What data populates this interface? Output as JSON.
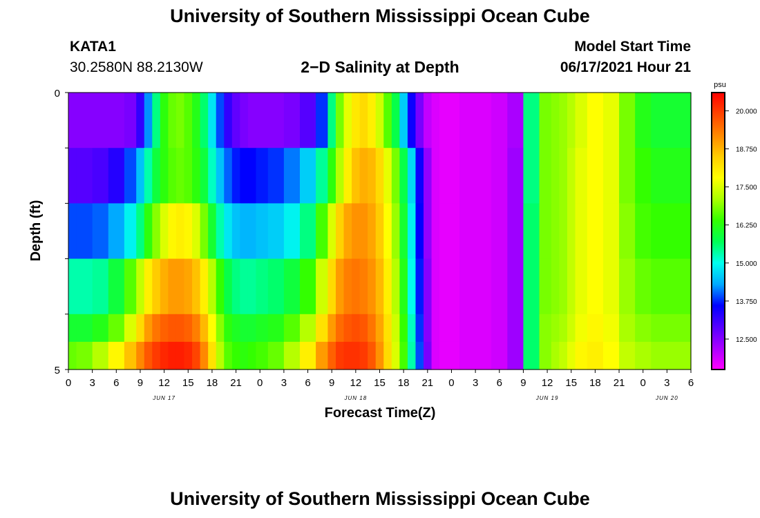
{
  "header": {
    "title": "University of Southern Mississippi Ocean Cube",
    "station_name": "KATA1",
    "station_coords": "30.2580N  88.2130W",
    "plot_title": "2−D Salinity at Depth",
    "start_label": "Model Start Time",
    "start_value": "06/17/2021 Hour 21"
  },
  "footer": {
    "title": "University of Southern Mississippi Ocean Cube"
  },
  "chart_data": {
    "type": "heatmap",
    "title": "2−D Salinity at Depth",
    "xlabel": "Forecast Time(Z)",
    "ylabel": "Depth (ft)",
    "x_tick_labels": [
      "0",
      "3",
      "6",
      "9",
      "12",
      "15",
      "18",
      "21",
      "0",
      "3",
      "6",
      "9",
      "12",
      "15",
      "18",
      "21",
      "0",
      "3",
      "6",
      "9",
      "12",
      "15",
      "18",
      "21",
      "0",
      "3",
      "6"
    ],
    "date_labels": [
      {
        "label": "JUN 17",
        "hour_index": 12
      },
      {
        "label": "JUN 18",
        "hour_index": 36
      },
      {
        "label": "JUN 19",
        "hour_index": 60
      },
      {
        "label": "JUN 20",
        "hour_index": 75
      }
    ],
    "x_range_hours": [
      0,
      78
    ],
    "y_tick_labels": [
      "0",
      "5"
    ],
    "ylim": [
      0,
      5
    ],
    "colorbar": {
      "unit": "psu",
      "tick_labels": [
        "20.000",
        "18.750",
        "17.500",
        "16.250",
        "15.000",
        "13.750",
        "12.500"
      ],
      "range": [
        11.5,
        20.6
      ],
      "colors": [
        "#ff00ff",
        "#aa00ff",
        "#5500ff",
        "#0000ff",
        "#00aaff",
        "#00ffee",
        "#00ff55",
        "#33ff00",
        "#aaff00",
        "#ffff00",
        "#ffcc00",
        "#ff8800",
        "#ff4400",
        "#ff0000"
      ]
    },
    "depth_rows": [
      0,
      1,
      2,
      3,
      4,
      4.5
    ],
    "forecast_hours": [
      0,
      2,
      4,
      6,
      8,
      9,
      10,
      11,
      12,
      13,
      14,
      15,
      16,
      17,
      18,
      19,
      20,
      21,
      22,
      23,
      24,
      26,
      28,
      30,
      32,
      33,
      34,
      35,
      36,
      37,
      38,
      39,
      40,
      41,
      42,
      43,
      44,
      45,
      46,
      47,
      48,
      50,
      52,
      54,
      56,
      58,
      60,
      61,
      62,
      63,
      64,
      66,
      68,
      70,
      72,
      74,
      76,
      78
    ],
    "salinity": [
      [
        12.5,
        12.5,
        12.5,
        12.5,
        12.6,
        13.2,
        14.2,
        15.5,
        16.3,
        16.7,
        16.8,
        16.6,
        16.2,
        15.6,
        14.8,
        13.9,
        13.2,
        12.8,
        12.6,
        12.5,
        12.5,
        12.5,
        12.6,
        12.9,
        13.8,
        15.5,
        16.8,
        17.6,
        18.1,
        18.3,
        18.0,
        17.4,
        16.6,
        15.8,
        14.6,
        13.5,
        12.6,
        12.0,
        11.8,
        11.7,
        11.7,
        11.8,
        11.8,
        11.9,
        12.2,
        15.5,
        16.8,
        16.9,
        17.0,
        17.2,
        17.5,
        17.8,
        17.6,
        16.8,
        16.2,
        16.0,
        16.0,
        16.0
      ],
      [
        12.9,
        12.9,
        13.0,
        13.3,
        13.9,
        14.5,
        15.3,
        15.9,
        16.3,
        16.6,
        16.7,
        16.6,
        16.3,
        15.9,
        15.2,
        14.5,
        14.0,
        13.7,
        13.6,
        13.6,
        13.7,
        13.8,
        14.1,
        14.6,
        15.4,
        16.3,
        17.2,
        18.0,
        18.6,
        18.8,
        18.7,
        18.3,
        17.6,
        16.8,
        15.8,
        14.7,
        13.5,
        12.4,
        11.8,
        11.7,
        11.7,
        11.8,
        11.8,
        11.9,
        12.3,
        15.5,
        16.8,
        16.9,
        17.0,
        17.3,
        17.6,
        17.8,
        17.6,
        16.8,
        16.4,
        16.2,
        16.2,
        16.2
      ],
      [
        13.9,
        13.9,
        14.0,
        14.3,
        14.9,
        15.5,
        16.3,
        16.9,
        17.5,
        17.9,
        18.0,
        17.9,
        17.5,
        16.8,
        16.0,
        15.3,
        14.8,
        14.5,
        14.4,
        14.4,
        14.5,
        14.6,
        14.9,
        15.5,
        16.5,
        17.5,
        18.4,
        18.9,
        19.1,
        19.1,
        18.9,
        18.5,
        17.8,
        17.0,
        16.0,
        14.9,
        13.6,
        12.4,
        11.8,
        11.7,
        11.7,
        11.8,
        11.8,
        11.9,
        12.3,
        15.6,
        16.8,
        16.9,
        17.0,
        17.3,
        17.6,
        17.8,
        17.6,
        16.9,
        16.5,
        16.4,
        16.4,
        16.4
      ],
      [
        15.3,
        15.3,
        15.4,
        15.9,
        16.6,
        17.3,
        18.0,
        18.5,
        18.8,
        19.0,
        19.0,
        18.9,
        18.6,
        18.0,
        17.2,
        16.4,
        15.8,
        15.5,
        15.4,
        15.4,
        15.5,
        15.6,
        15.9,
        16.4,
        17.4,
        18.3,
        19.0,
        19.3,
        19.4,
        19.3,
        19.1,
        18.7,
        18.0,
        17.2,
        16.2,
        15.0,
        13.7,
        12.5,
        11.8,
        11.7,
        11.7,
        11.8,
        11.8,
        11.9,
        12.3,
        15.6,
        16.8,
        16.9,
        17.0,
        17.3,
        17.6,
        17.8,
        17.6,
        17.0,
        16.7,
        16.6,
        16.6,
        16.6
      ],
      [
        16.0,
        16.0,
        16.2,
        16.7,
        17.5,
        18.3,
        19.0,
        19.4,
        19.6,
        19.7,
        19.7,
        19.6,
        19.3,
        18.7,
        17.8,
        16.9,
        16.3,
        16.1,
        16.0,
        16.0,
        16.1,
        16.2,
        16.6,
        17.2,
        18.2,
        19.0,
        19.5,
        19.7,
        19.8,
        19.7,
        19.4,
        18.9,
        18.2,
        17.4,
        16.4,
        15.2,
        13.8,
        12.5,
        11.8,
        11.7,
        11.7,
        11.8,
        11.8,
        11.9,
        12.3,
        15.6,
        16.9,
        17.0,
        17.1,
        17.4,
        17.7,
        17.9,
        17.7,
        17.1,
        16.9,
        16.8,
        16.8,
        16.8
      ],
      [
        16.7,
        16.8,
        17.2,
        17.9,
        18.6,
        19.2,
        19.7,
        20.0,
        20.2,
        20.3,
        20.3,
        20.2,
        19.9,
        19.2,
        18.2,
        17.2,
        16.6,
        16.4,
        16.3,
        16.4,
        16.5,
        16.7,
        17.2,
        18.0,
        19.0,
        19.6,
        20.0,
        20.1,
        20.1,
        20.0,
        19.7,
        19.1,
        18.3,
        17.5,
        16.5,
        15.3,
        13.9,
        12.6,
        11.8,
        11.7,
        11.7,
        11.8,
        11.8,
        11.9,
        12.3,
        15.6,
        16.9,
        17.1,
        17.3,
        17.6,
        17.9,
        18.0,
        17.8,
        17.3,
        17.1,
        17.0,
        17.0,
        17.0
      ]
    ]
  }
}
